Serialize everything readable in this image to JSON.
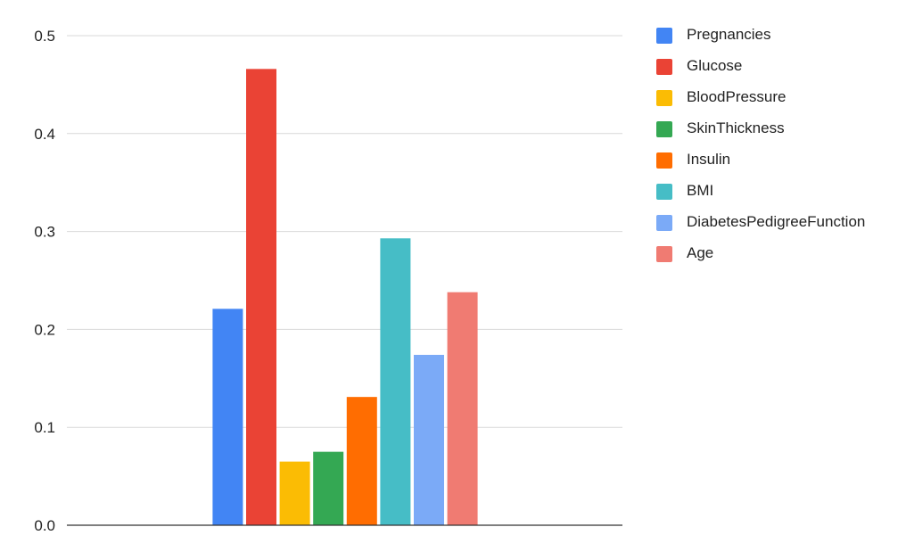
{
  "chart_data": {
    "type": "bar",
    "categories": [
      ""
    ],
    "series": [
      {
        "name": "Pregnancies",
        "values": [
          0.221
        ],
        "color": "#4285f4"
      },
      {
        "name": "Glucose",
        "values": [
          0.466
        ],
        "color": "#ea4335"
      },
      {
        "name": "BloodPressure",
        "values": [
          0.065
        ],
        "color": "#fbbc04"
      },
      {
        "name": "SkinThickness",
        "values": [
          0.075
        ],
        "color": "#34a853"
      },
      {
        "name": "Insulin",
        "values": [
          0.131
        ],
        "color": "#ff6d01"
      },
      {
        "name": "BMI",
        "values": [
          0.293
        ],
        "color": "#46bdc6"
      },
      {
        "name": "DiabetesPedigreeFunction",
        "values": [
          0.174
        ],
        "color": "#7baaf7"
      },
      {
        "name": "Age",
        "values": [
          0.238
        ],
        "color": "#f07b72"
      }
    ],
    "title": "",
    "xlabel": "",
    "ylabel": "",
    "ylim": [
      0,
      0.5
    ],
    "yticks": [
      "0.0",
      "0.1",
      "0.2",
      "0.3",
      "0.4",
      "0.5"
    ],
    "grid": true,
    "legend_position": "right"
  }
}
